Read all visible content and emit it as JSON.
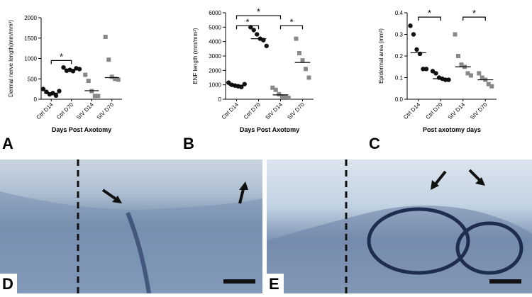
{
  "chart_data": [
    {
      "type": "dot",
      "panel_label": "A",
      "y_label": "Dermal nerve length(mm/mm³)",
      "x_label": "Days Post Axotomy",
      "categories": [
        "Ctrl D14",
        "Ctrl D70",
        "SIV D14",
        "SIV D70"
      ],
      "markers": [
        "circle",
        "circle",
        "square",
        "square"
      ],
      "colors": [
        "#111111",
        "#111111",
        "#888888",
        "#888888"
      ],
      "values": [
        [
          250,
          180,
          120,
          150,
          90,
          200
        ],
        [
          780,
          700,
          720,
          690,
          760,
          740
        ],
        [
          600,
          450,
          200,
          80,
          80
        ],
        [
          1530,
          970,
          550,
          500,
          480
        ]
      ],
      "medians": [
        150,
        730,
        210,
        530
      ],
      "brackets": [
        {
          "label": "*",
          "span": [
            0,
            1
          ],
          "y": 950
        }
      ],
      "ylim": [
        0,
        2000
      ],
      "yticks": [
        0,
        500,
        1000,
        1500,
        2000
      ]
    },
    {
      "type": "dot",
      "panel_label": "B",
      "y_label": "ENF length (mm/mm³)",
      "x_label": "Days Post Axotomy",
      "categories": [
        "Ctrl D14",
        "Ctrl D70",
        "SIV D14",
        "SIV D70"
      ],
      "markers": [
        "circle",
        "circle",
        "square",
        "square"
      ],
      "colors": [
        "#111111",
        "#111111",
        "#888888",
        "#888888"
      ],
      "values": [
        [
          1150,
          1000,
          950,
          900,
          850,
          1050
        ],
        [
          5000,
          4800,
          4500,
          4200,
          4100,
          3700
        ],
        [
          800,
          650,
          350,
          200,
          150,
          100
        ],
        [
          4200,
          3200,
          2700,
          2100,
          1500
        ]
      ],
      "medians": [
        970,
        4200,
        300,
        2550
      ],
      "brackets": [
        {
          "label": "*",
          "span": [
            0,
            1
          ],
          "y": 5100
        },
        {
          "label": "*",
          "span": [
            0,
            2
          ],
          "y": 5800
        },
        {
          "label": "*",
          "span": [
            2,
            3
          ],
          "y": 5100
        }
      ],
      "ylim": [
        0,
        6000
      ],
      "yticks": [
        0,
        1000,
        2000,
        3000,
        4000,
        5000,
        6000
      ]
    },
    {
      "type": "dot",
      "panel_label": "C",
      "y_label": "Epidermal area (mm²)",
      "x_label": "Post axotomy days",
      "categories": [
        "Ctrl D14",
        "Ctrl D70",
        "SIV D14",
        "SIV D70"
      ],
      "markers": [
        "circle",
        "circle",
        "square",
        "square"
      ],
      "colors": [
        "#111111",
        "#111111",
        "#888888",
        "#888888"
      ],
      "values": [
        [
          0.34,
          0.3,
          0.23,
          0.21,
          0.14,
          0.14
        ],
        [
          0.13,
          0.12,
          0.1,
          0.095,
          0.09,
          0.09
        ],
        [
          0.3,
          0.2,
          0.16,
          0.15,
          0.12,
          0.11
        ],
        [
          0.12,
          0.1,
          0.09,
          0.07,
          0.06
        ]
      ],
      "medians": [
        0.215,
        0.095,
        0.15,
        0.09
      ],
      "brackets": [
        {
          "label": "*",
          "span": [
            0,
            1
          ],
          "y": 0.38
        },
        {
          "label": "*",
          "span": [
            2,
            3
          ],
          "y": 0.38
        }
      ],
      "ylim": [
        0,
        0.4
      ],
      "yticks": [
        {
          "value": 0,
          "label": "0.0"
        },
        0.1,
        0.2,
        0.3,
        0.4
      ]
    }
  ],
  "images": [
    {
      "panel_label": "D"
    },
    {
      "panel_label": "E"
    }
  ]
}
